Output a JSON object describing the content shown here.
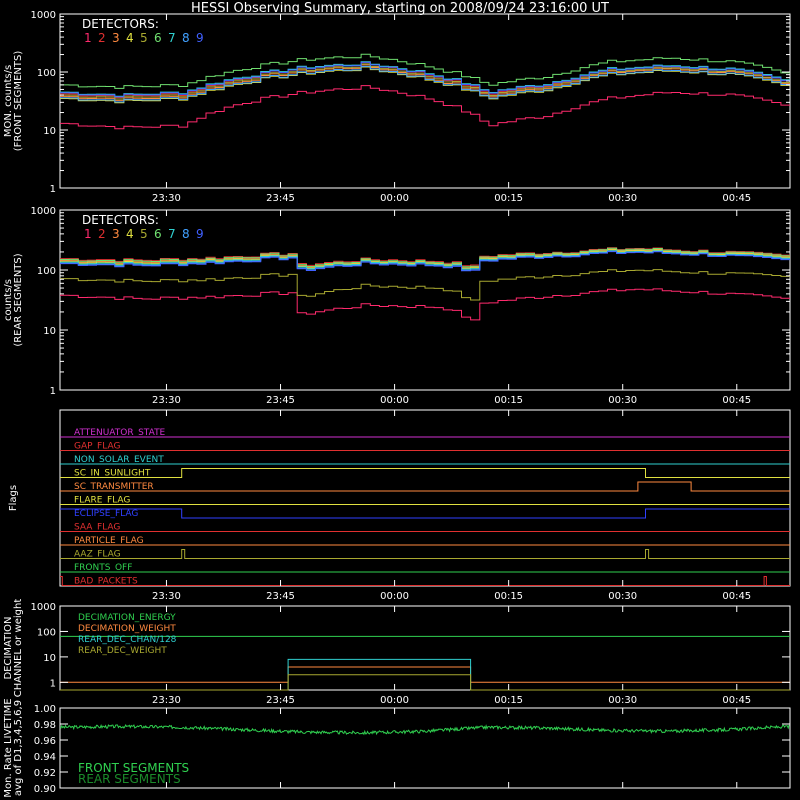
{
  "title": "HESSI Observing Summary, starting on 2008/09/24 23:16:00 UT",
  "time_ticks": [
    "23:30",
    "23:45",
    "00:00",
    "00:15",
    "00:30",
    "00:45"
  ],
  "detector_colors": [
    "#ff2a6d",
    "#e03030",
    "#ff8a40",
    "#e0e040",
    "#a8a830",
    "#70e070",
    "#30d0d0",
    "#40a0ff",
    "#4060ff"
  ],
  "chart_data": [
    {
      "type": "line",
      "panel": "front",
      "ylabel": [
        "MON. counts/s",
        "(FRONT SEGMENTS)"
      ],
      "ylim": [
        1,
        1000
      ],
      "yscale": "log",
      "ytick_labels": [
        "1",
        "10",
        "100",
        "1000"
      ],
      "legend_title": "DETECTORS:",
      "legend_labels": [
        "1",
        "2",
        "3",
        "4",
        "5",
        "6",
        "7",
        "8",
        "9"
      ],
      "x_minutes": [
        0,
        8,
        16,
        24,
        32,
        40,
        48,
        56,
        64,
        72,
        80,
        88,
        96
      ],
      "series": [
        {
          "values": [
            13,
            11,
            12,
            30,
            45,
            55,
            35,
            12,
            18,
            35,
            45,
            40,
            24
          ]
        },
        {
          "values": [
            42,
            38,
            42,
            80,
            118,
            138,
            90,
            42,
            60,
            108,
            128,
            108,
            62
          ]
        },
        {
          "values": [
            38,
            34,
            38,
            72,
            105,
            125,
            80,
            38,
            55,
            98,
            115,
            98,
            56
          ]
        },
        {
          "values": [
            35,
            31,
            35,
            66,
            95,
            115,
            74,
            35,
            50,
            90,
            105,
            90,
            52
          ]
        },
        {
          "values": [
            40,
            36,
            40,
            76,
            110,
            130,
            85,
            40,
            58,
            102,
            120,
            102,
            58
          ]
        },
        {
          "values": [
            60,
            55,
            60,
            115,
            165,
            190,
            125,
            60,
            85,
            150,
            175,
            150,
            85
          ]
        },
        {
          "values": [
            45,
            40,
            45,
            85,
            122,
            142,
            95,
            45,
            64,
            112,
            130,
            112,
            65
          ]
        },
        {
          "values": [
            36,
            32,
            36,
            68,
            98,
            118,
            76,
            36,
            52,
            92,
            108,
            92,
            54
          ]
        },
        {
          "values": [
            44,
            39,
            44,
            82,
            118,
            138,
            92,
            44,
            62,
            108,
            126,
            108,
            63
          ]
        }
      ]
    },
    {
      "type": "line",
      "panel": "rear",
      "ylabel": [
        "counts/s",
        "(REAR SEGMENTS)"
      ],
      "ylim": [
        1,
        1000
      ],
      "yscale": "log",
      "ytick_labels": [
        "1",
        "10",
        "100",
        "1000"
      ],
      "legend_title": "DETECTORS:",
      "legend_labels": [
        "1",
        "2",
        "3",
        "4",
        "5",
        "6",
        "7",
        "8",
        "9"
      ],
      "x_minutes": [
        0,
        10,
        20,
        30,
        31,
        40,
        50,
        54,
        55,
        65,
        75,
        85,
        96
      ],
      "series": [
        {
          "values": [
            38,
            33,
            36,
            42,
            18,
            26,
            24,
            14,
            28,
            38,
            48,
            42,
            32
          ]
        },
        {
          "values": [
            155,
            145,
            160,
            190,
            120,
            150,
            140,
            115,
            170,
            200,
            230,
            205,
            170
          ]
        },
        {
          "values": [
            145,
            135,
            150,
            178,
            112,
            142,
            132,
            108,
            160,
            190,
            218,
            195,
            160
          ]
        },
        {
          "values": [
            140,
            130,
            145,
            172,
            108,
            138,
            128,
            104,
            155,
            185,
            212,
            190,
            155
          ]
        },
        {
          "values": [
            72,
            65,
            70,
            85,
            35,
            55,
            50,
            30,
            65,
            82,
            100,
            90,
            75
          ]
        },
        {
          "values": [
            150,
            140,
            155,
            185,
            115,
            145,
            135,
            110,
            165,
            195,
            225,
            200,
            165
          ]
        },
        {
          "values": [
            135,
            125,
            140,
            168,
            105,
            135,
            125,
            100,
            150,
            180,
            205,
            185,
            150
          ]
        },
        {
          "values": [
            130,
            120,
            135,
            162,
            100,
            130,
            120,
            96,
            145,
            175,
            200,
            180,
            145
          ]
        },
        {
          "values": [
            128,
            118,
            132,
            160,
            98,
            128,
            118,
            94,
            142,
            172,
            198,
            178,
            142
          ]
        }
      ]
    },
    {
      "type": "line",
      "panel": "flags",
      "ylabel": [
        "Flags"
      ],
      "flags": [
        {
          "name": "ATTENUATOR_STATE",
          "color": "#d030d0",
          "steps": []
        },
        {
          "name": "GAP_FLAG",
          "color": "#e03030",
          "steps": []
        },
        {
          "name": "NON_SOLAR_EVENT",
          "color": "#30d0d0",
          "steps": []
        },
        {
          "name": "SC_IN_SUNLIGHT",
          "color": "#e0e040",
          "steps": [
            [
              0,
              0
            ],
            [
              16,
              1
            ],
            [
              77,
              0
            ]
          ]
        },
        {
          "name": "SC_TRANSMITTER",
          "color": "#ff8a40",
          "steps": [
            [
              0,
              0
            ],
            [
              76,
              1
            ],
            [
              83,
              0
            ]
          ]
        },
        {
          "name": "FLARE_FLAG",
          "color": "#e0e040",
          "steps": []
        },
        {
          "name": "ECLIPSE_FLAG",
          "color": "#3040ff",
          "steps": [
            [
              0,
              1
            ],
            [
              16,
              0
            ],
            [
              77,
              1
            ]
          ]
        },
        {
          "name": "SAA_FLAG",
          "color": "#e03030",
          "steps": []
        },
        {
          "name": "PARTICLE_FLAG",
          "color": "#ff8a40",
          "steps": []
        },
        {
          "name": "AAZ_FLAG",
          "color": "#a8a830",
          "steps": [
            [
              0,
              0
            ],
            [
              16,
              1
            ],
            [
              16.4,
              0
            ],
            [
              77,
              1
            ],
            [
              77.4,
              0
            ]
          ]
        },
        {
          "name": "FRONTS_OFF",
          "color": "#30d050",
          "steps": []
        },
        {
          "name": "BAD_PACKETS",
          "color": "#e03030",
          "steps": [
            [
              0,
              1
            ],
            [
              0.3,
              0
            ],
            [
              92.6,
              1
            ],
            [
              92.9,
              0
            ]
          ]
        }
      ]
    },
    {
      "type": "line",
      "panel": "decimation",
      "ylabel": [
        "DECIMATION",
        "CHANNEL or weight"
      ],
      "ylim": [
        0.5,
        1000
      ],
      "yscale": "log",
      "ytick_labels": [
        "1",
        "10",
        "100",
        "1000"
      ],
      "series": [
        {
          "name": "DECIMATION_ENERGY",
          "color": "#30d050",
          "steps": [
            [
              0,
              64
            ]
          ]
        },
        {
          "name": "DECIMATION_WEIGHT",
          "color": "#ff8a40",
          "steps": [
            [
              0,
              1
            ],
            [
              30,
              4
            ],
            [
              54,
              1
            ]
          ]
        },
        {
          "name": "REAR_DEC_CHAN/128",
          "color": "#30d0d0",
          "steps": [
            [
              0,
              0.5
            ],
            [
              30,
              8
            ],
            [
              54,
              0.5
            ]
          ]
        },
        {
          "name": "REAR_DEC_WEIGHT",
          "color": "#a8a830",
          "steps": [
            [
              0,
              0.5
            ],
            [
              30,
              2
            ],
            [
              54,
              0.5
            ]
          ]
        }
      ]
    },
    {
      "type": "line",
      "panel": "livetime",
      "ylabel": [
        "Mon. Rate LIVETIME",
        "avg of D1,3,4,5,6,9"
      ],
      "ylim": [
        0.9,
        1.0
      ],
      "ytick_labels": [
        "0.90",
        "0.92",
        "0.94",
        "0.96",
        "0.98",
        "1.00"
      ],
      "series": [
        {
          "name": "FRONT SEGMENTS",
          "color": "#30d050",
          "x_minutes": [
            0,
            8,
            16,
            24,
            32,
            40,
            48,
            56,
            64,
            72,
            80,
            88,
            96
          ],
          "values": [
            0.976,
            0.977,
            0.976,
            0.973,
            0.97,
            0.969,
            0.971,
            0.976,
            0.975,
            0.972,
            0.971,
            0.973,
            0.977
          ]
        },
        {
          "name": "REAR SEGMENTS",
          "color": "#1a8a2a",
          "x_minutes": [],
          "values": []
        }
      ]
    }
  ]
}
